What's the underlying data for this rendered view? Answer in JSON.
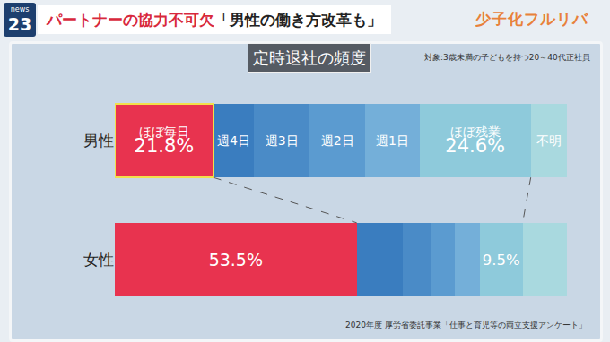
{
  "header": {
    "badge": [
      "news",
      "23"
    ],
    "headline": [
      "パートナーの協力不可欠",
      "「男性の働き方改革も」"
    ],
    "corner": "少子化フルリバ"
  },
  "chart_data": {
    "type": "bar",
    "title": "定時退社の頻度",
    "subtitle": "対象:3歳未満の子どもを持つ20～40代正社員",
    "source": "2020年度 厚労省委託事業「仕事と育児等の両立支援アンケート」",
    "orientation": "horizontal",
    "stacked": true,
    "data_labels": true,
    "tick_labels": "y",
    "categories": [
      "男性",
      "女性"
    ],
    "xlim": [
      0,
      100
    ],
    "series": [
      {
        "name": "ほぼ毎日",
        "color": "#e8334f",
        "values": [
          21.8,
          53.5
        ],
        "value_labels": [
          "21.8%",
          "53.5%"
        ]
      },
      {
        "name": "週4日",
        "color": "#3a7dbf",
        "values": [
          9.0,
          10.1
        ],
        "value_labels": [
          null,
          null
        ]
      },
      {
        "name": "週3日",
        "color": "#4a8bc7",
        "values": [
          12.3,
          6.5
        ],
        "value_labels": [
          null,
          null
        ]
      },
      {
        "name": "週2日",
        "color": "#5b9bd0",
        "values": [
          12.3,
          5.0
        ],
        "value_labels": [
          null,
          null
        ]
      },
      {
        "name": "週1日",
        "color": "#74afd9",
        "values": [
          12.0,
          5.6
        ],
        "value_labels": [
          null,
          null
        ]
      },
      {
        "name": "ほぼ残業",
        "color": "#8ecadb",
        "values": [
          24.6,
          9.5
        ],
        "value_labels": [
          "24.6%",
          "9.5%"
        ]
      },
      {
        "name": "不明",
        "color": "#a9d9df",
        "values": [
          8.0,
          9.8
        ],
        "value_labels": [
          null,
          null
        ]
      }
    ]
  }
}
